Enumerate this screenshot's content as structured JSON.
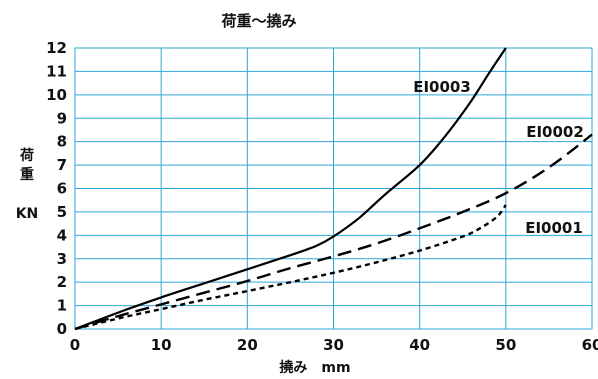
{
  "chart_data": {
    "type": "line",
    "title": "荷重〜撓み",
    "xlabel": "撓み　mm",
    "ylabel_chars": [
      "荷",
      "重"
    ],
    "ylabel_unit": "KN",
    "xlim": [
      0,
      60
    ],
    "ylim": [
      0,
      12
    ],
    "x_ticks": [
      0,
      10,
      20,
      30,
      40,
      50,
      60
    ],
    "y_ticks": [
      0,
      1,
      2,
      3,
      4,
      5,
      6,
      7,
      8,
      9,
      10,
      11,
      12
    ],
    "grid": true,
    "grid_color": "#2ea7d8",
    "series": [
      {
        "name": "EI0003",
        "style": "solid",
        "x": [
          0,
          5,
          10,
          15,
          20,
          25,
          28,
          30,
          33,
          36,
          40,
          43,
          46,
          48,
          50
        ],
        "y": [
          0,
          0.7,
          1.35,
          1.95,
          2.55,
          3.15,
          3.55,
          3.95,
          4.75,
          5.75,
          7.0,
          8.25,
          9.75,
          10.9,
          12.0
        ]
      },
      {
        "name": "EI0002",
        "style": "dashed",
        "x": [
          0,
          5,
          10,
          15,
          20,
          25,
          30,
          35,
          40,
          45,
          50,
          55,
          60
        ],
        "y": [
          0,
          0.55,
          1.05,
          1.55,
          2.05,
          2.6,
          3.1,
          3.65,
          4.3,
          5.0,
          5.8,
          6.9,
          8.3
        ]
      },
      {
        "name": "EI0001",
        "style": "dotted",
        "x": [
          0,
          5,
          10,
          15,
          20,
          25,
          30,
          35,
          40,
          45,
          47,
          49,
          50
        ],
        "y": [
          0,
          0.45,
          0.85,
          1.25,
          1.62,
          2.0,
          2.4,
          2.85,
          3.35,
          3.95,
          4.3,
          4.8,
          5.3
        ]
      }
    ]
  }
}
